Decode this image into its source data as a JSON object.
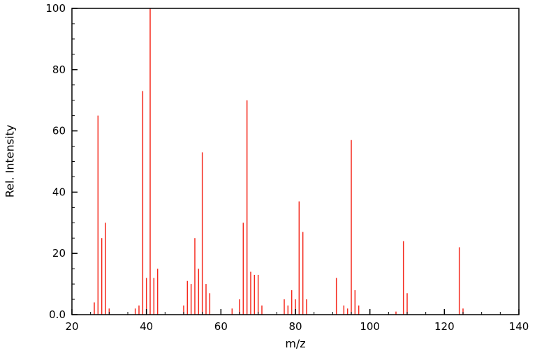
{
  "chart_data": {
    "type": "bar",
    "title": "",
    "xlabel": "m/z",
    "ylabel": "Rel. Intensity",
    "xlim": [
      20,
      140
    ],
    "ylim": [
      0,
      100
    ],
    "x_ticks": [
      20,
      40,
      60,
      80,
      100,
      120,
      140
    ],
    "x_tick_labels": [
      "20",
      "40",
      "60",
      "80",
      "100",
      "120",
      "140"
    ],
    "y_ticks": [
      0,
      20,
      40,
      60,
      80,
      100
    ],
    "y_tick_labels": [
      "0.0",
      "20",
      "40",
      "60",
      "80",
      "100"
    ],
    "x_minor_step": 5,
    "y_minor_step": 5,
    "grid": false,
    "legend": "none",
    "peak_color": "#f5291d",
    "axis_color": "#000000",
    "peaks": [
      {
        "mz": 26,
        "intensity": 4
      },
      {
        "mz": 27,
        "intensity": 65
      },
      {
        "mz": 28,
        "intensity": 25
      },
      {
        "mz": 29,
        "intensity": 30
      },
      {
        "mz": 30,
        "intensity": 2
      },
      {
        "mz": 37,
        "intensity": 2
      },
      {
        "mz": 38,
        "intensity": 3
      },
      {
        "mz": 39,
        "intensity": 73
      },
      {
        "mz": 40,
        "intensity": 12
      },
      {
        "mz": 41,
        "intensity": 100
      },
      {
        "mz": 42,
        "intensity": 12
      },
      {
        "mz": 43,
        "intensity": 15
      },
      {
        "mz": 50,
        "intensity": 3
      },
      {
        "mz": 51,
        "intensity": 11
      },
      {
        "mz": 52,
        "intensity": 10
      },
      {
        "mz": 53,
        "intensity": 25
      },
      {
        "mz": 54,
        "intensity": 15
      },
      {
        "mz": 55,
        "intensity": 53
      },
      {
        "mz": 56,
        "intensity": 10
      },
      {
        "mz": 57,
        "intensity": 7
      },
      {
        "mz": 63,
        "intensity": 2
      },
      {
        "mz": 65,
        "intensity": 5
      },
      {
        "mz": 66,
        "intensity": 30
      },
      {
        "mz": 67,
        "intensity": 70
      },
      {
        "mz": 68,
        "intensity": 14
      },
      {
        "mz": 69,
        "intensity": 13
      },
      {
        "mz": 70,
        "intensity": 13
      },
      {
        "mz": 71,
        "intensity": 3
      },
      {
        "mz": 77,
        "intensity": 5
      },
      {
        "mz": 78,
        "intensity": 3
      },
      {
        "mz": 79,
        "intensity": 8
      },
      {
        "mz": 80,
        "intensity": 5
      },
      {
        "mz": 81,
        "intensity": 37
      },
      {
        "mz": 82,
        "intensity": 27
      },
      {
        "mz": 83,
        "intensity": 5
      },
      {
        "mz": 91,
        "intensity": 12
      },
      {
        "mz": 93,
        "intensity": 3
      },
      {
        "mz": 94,
        "intensity": 2
      },
      {
        "mz": 95,
        "intensity": 57
      },
      {
        "mz": 96,
        "intensity": 8
      },
      {
        "mz": 97,
        "intensity": 3
      },
      {
        "mz": 107,
        "intensity": 1
      },
      {
        "mz": 109,
        "intensity": 24
      },
      {
        "mz": 110,
        "intensity": 7
      },
      {
        "mz": 124,
        "intensity": 22
      },
      {
        "mz": 125,
        "intensity": 2
      }
    ]
  }
}
